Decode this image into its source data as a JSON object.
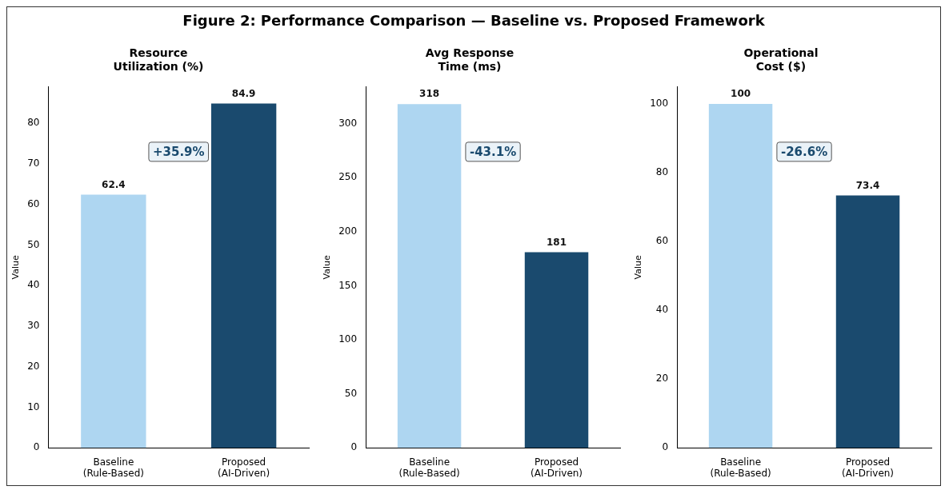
{
  "chart_data": [
    {
      "type": "bar",
      "title": "Resource\nUtilization (%)",
      "categories": [
        "Baseline\n(Rule-Based)",
        "Proposed\n(AI-Driven)"
      ],
      "values": [
        62.4,
        84.9
      ],
      "colors": [
        "#aed6f1",
        "#1a4a6e"
      ],
      "ylabel": "Value",
      "ylim": [
        0,
        89
      ],
      "yticks": [
        0,
        10,
        20,
        30,
        40,
        50,
        60,
        70,
        80
      ],
      "data_labels": true,
      "grid": false,
      "legend": false,
      "annotations": [
        "Figure 2: Performance Comparison — Baseline vs. Proposed Framework",
        "+35.9%"
      ]
    },
    {
      "type": "bar",
      "title": "Avg Response\nTime (ms)",
      "categories": [
        "Baseline\n(Rule-Based)",
        "Proposed\n(AI-Driven)"
      ],
      "values": [
        318,
        181
      ],
      "colors": [
        "#aed6f1",
        "#1a4a6e"
      ],
      "ylabel": "Value",
      "ylim": [
        0,
        334
      ],
      "yticks": [
        0,
        50,
        100,
        150,
        200,
        250,
        300
      ],
      "data_labels": true,
      "grid": false,
      "legend": false,
      "annotations": [
        "-43.1%"
      ]
    },
    {
      "type": "bar",
      "title": "Operational\nCost ($)",
      "categories": [
        "Baseline\n(Rule-Based)",
        "Proposed\n(AI-Driven)"
      ],
      "values": [
        100,
        73.4
      ],
      "colors": [
        "#aed6f1",
        "#1a4a6e"
      ],
      "ylabel": "Value",
      "ylim": [
        0,
        105
      ],
      "yticks": [
        0,
        20,
        40,
        60,
        80,
        100
      ],
      "data_labels": true,
      "grid": false,
      "legend": false,
      "annotations": [
        "-26.6%"
      ]
    }
  ]
}
